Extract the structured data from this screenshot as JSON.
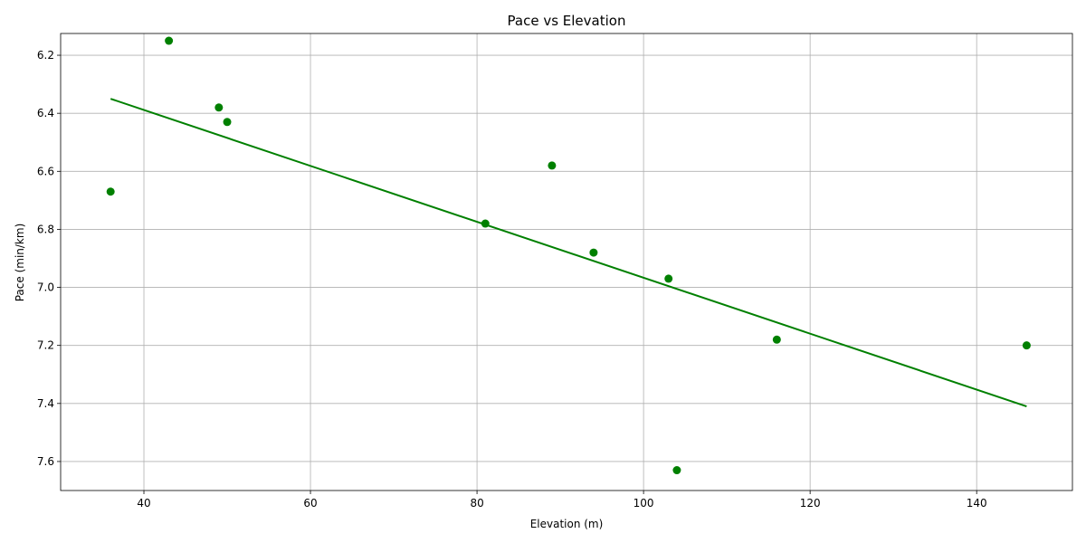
{
  "chart_data": {
    "type": "scatter",
    "title": "Pace vs Elevation",
    "xlabel": "Elevation (m)",
    "ylabel": "Pace (min/km)",
    "xlim": [
      30,
      151.5
    ],
    "ylim": [
      6.125,
      7.7
    ],
    "y_inverted": true,
    "grid": true,
    "x_ticks": [
      40,
      60,
      80,
      100,
      120,
      140
    ],
    "x_tick_labels": [
      "40",
      "60",
      "80",
      "100",
      "120",
      "140"
    ],
    "y_ticks": [
      6.2,
      6.4,
      6.6,
      6.8,
      7.0,
      7.2,
      7.4,
      7.6
    ],
    "y_tick_labels": [
      "6.2",
      "6.4",
      "6.6",
      "6.8",
      "7.0",
      "7.2",
      "7.4",
      "7.6"
    ],
    "points": [
      {
        "x": 36,
        "y": 6.67
      },
      {
        "x": 43,
        "y": 6.15
      },
      {
        "x": 49,
        "y": 6.38
      },
      {
        "x": 50,
        "y": 6.43
      },
      {
        "x": 81,
        "y": 6.78
      },
      {
        "x": 89,
        "y": 6.58
      },
      {
        "x": 94,
        "y": 6.88
      },
      {
        "x": 103,
        "y": 6.97
      },
      {
        "x": 104,
        "y": 7.63
      },
      {
        "x": 116,
        "y": 7.18
      },
      {
        "x": 146,
        "y": 7.2
      }
    ],
    "trendline": {
      "x": [
        36,
        146
      ],
      "y": [
        6.35,
        7.41
      ]
    },
    "color": "#008000"
  }
}
